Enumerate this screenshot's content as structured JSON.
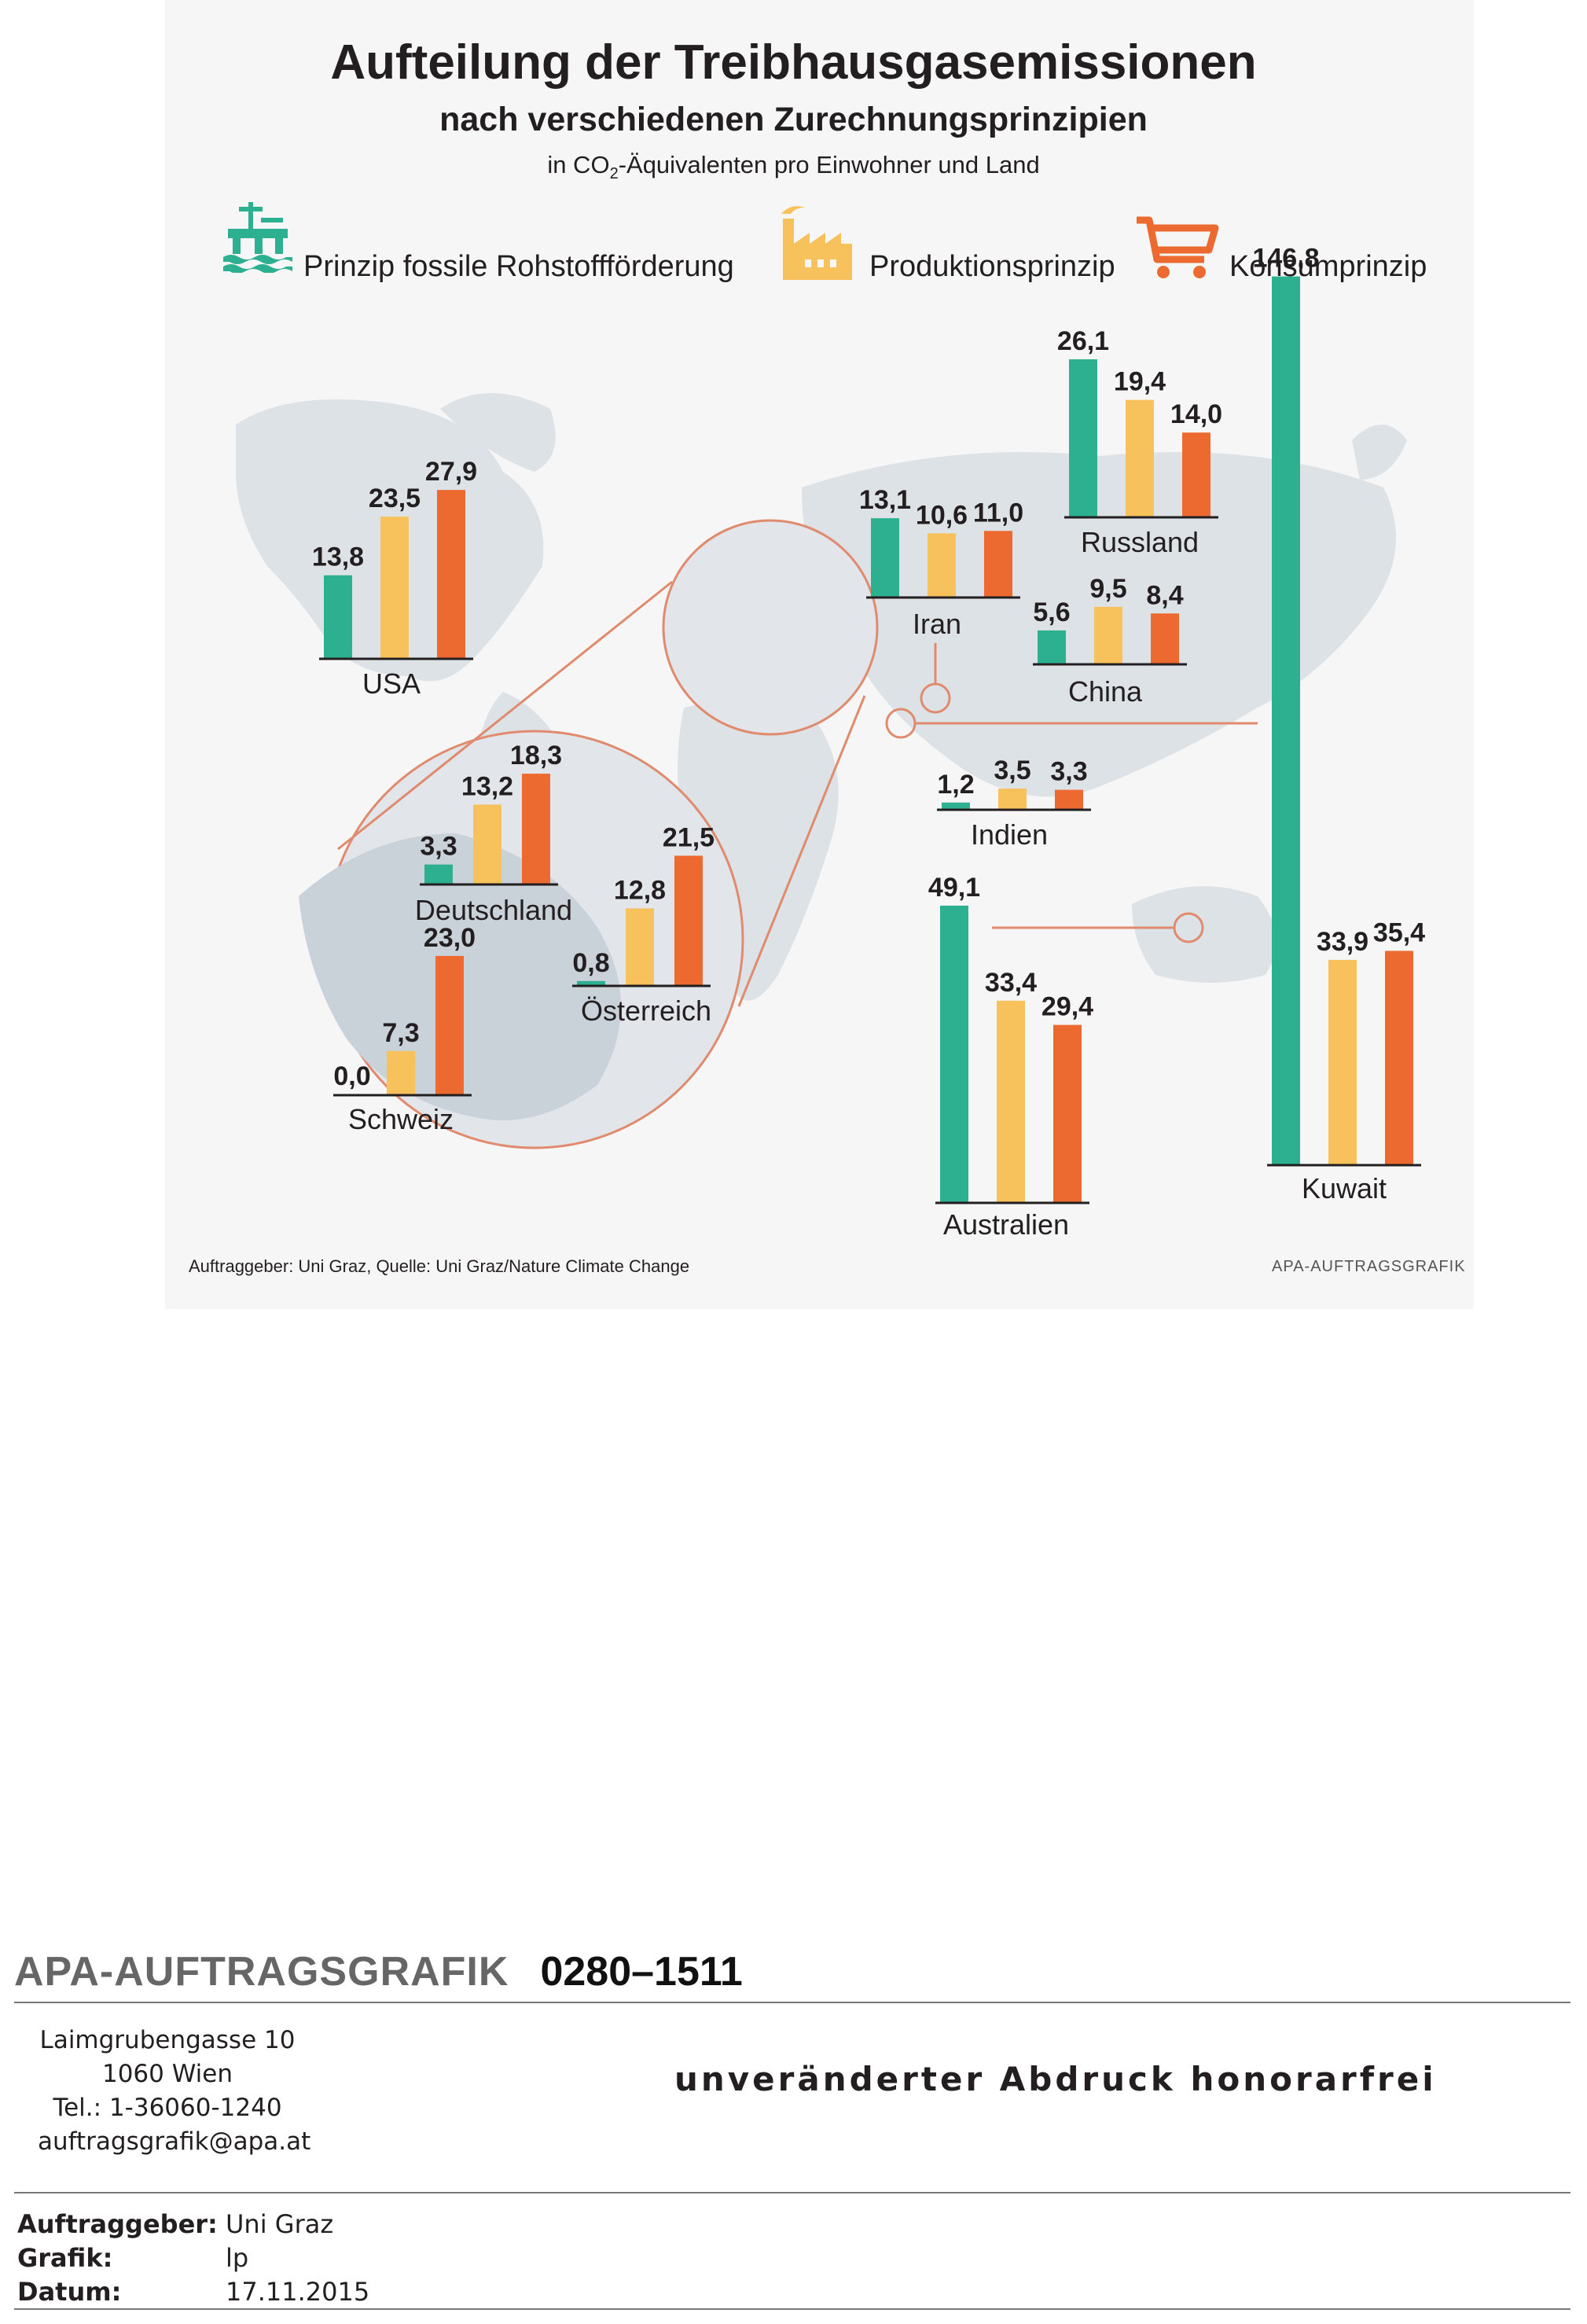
{
  "title": "Aufteilung der Treibhausgasemissionen",
  "subtitle": "nach verschiedenen Zurechnungsprinzipien",
  "unit_prefix": "in CO",
  "unit_sub": "2",
  "unit_suffix": "-Äquivalenten pro Einwohner und Land",
  "legend": [
    {
      "label": "Prinzip fossile Rohstoffförderung",
      "color": "#2db08f",
      "icon": "oil-platform-icon"
    },
    {
      "label": "Produktionsprinzip",
      "color": "#f7c15c",
      "icon": "factory-icon"
    },
    {
      "label": "Konsumprinzip",
      "color": "#ec6a2f",
      "icon": "shopping-cart-icon"
    }
  ],
  "chart_data": {
    "type": "bar",
    "series": [
      {
        "name": "Prinzip fossile Rohstoffförderung",
        "color": "#2db08f"
      },
      {
        "name": "Produktionsprinzip",
        "color": "#f7c15c"
      },
      {
        "name": "Konsumprinzip",
        "color": "#ec6a2f"
      }
    ],
    "countries": [
      {
        "name": "USA",
        "values": [
          13.8,
          23.5,
          27.9
        ],
        "labels": [
          "13,8",
          "23,5",
          "27,9"
        ]
      },
      {
        "name": "Iran",
        "values": [
          13.1,
          10.6,
          11.0
        ],
        "labels": [
          "13,1",
          "10,6",
          "11,0"
        ]
      },
      {
        "name": "Russland",
        "values": [
          26.1,
          19.4,
          14.0
        ],
        "labels": [
          "26,1",
          "19,4",
          "14,0"
        ]
      },
      {
        "name": "China",
        "values": [
          5.6,
          9.5,
          8.4
        ],
        "labels": [
          "5,6",
          "9,5",
          "8,4"
        ]
      },
      {
        "name": "Indien",
        "values": [
          1.2,
          3.5,
          3.3
        ],
        "labels": [
          "1,2",
          "3,5",
          "3,3"
        ]
      },
      {
        "name": "Australien",
        "values": [
          49.1,
          33.4,
          29.4
        ],
        "labels": [
          "49,1",
          "33,4",
          "29,4"
        ]
      },
      {
        "name": "Kuwait",
        "values": [
          146.8,
          33.9,
          35.4
        ],
        "labels": [
          "146,8",
          "33,9",
          "35,4"
        ]
      },
      {
        "name": "Deutschland",
        "values": [
          3.3,
          13.2,
          18.3
        ],
        "labels": [
          "3,3",
          "13,2",
          "18,3"
        ]
      },
      {
        "name": "Österreich",
        "values": [
          0.8,
          12.8,
          21.5
        ],
        "labels": [
          "0,8",
          "12,8",
          "21,5"
        ]
      },
      {
        "name": "Schweiz",
        "values": [
          0.0,
          7.3,
          23.0
        ],
        "labels": [
          "0,0",
          "7,3",
          "23,0"
        ]
      }
    ]
  },
  "source": "Auftraggeber: Uni Graz, Quelle: Uni Graz/Nature Climate Change",
  "credit": "APA-AUFTRAGSGRAFIK",
  "meta": {
    "brand": "APA-AUFTRAGSGRAFIK",
    "number": "0280–1511",
    "address": [
      "Laimgrubengasse 10",
      "1060 Wien",
      "Tel.: 1-36060-1240",
      "auftragsgrafik@apa.at"
    ],
    "note": "unveränderter Abdruck honorarfrei",
    "rows": [
      {
        "key": "Auftraggeber:",
        "value": "Uni Graz"
      },
      {
        "key": "Grafik:",
        "value": "lp"
      },
      {
        "key": "Datum:",
        "value": "17.11.2015"
      }
    ]
  }
}
